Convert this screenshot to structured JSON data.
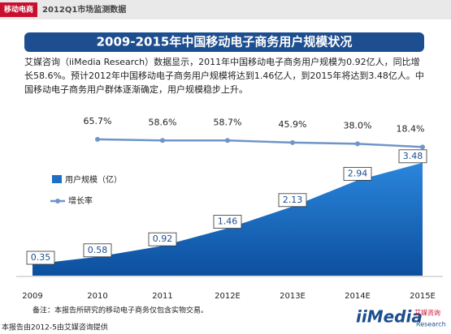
{
  "header": {
    "tag": "移动电商",
    "subtitle": "2012Q1市场监测数据"
  },
  "description": "艾媒咨询（iiMedia Research）数据显示，2011年中国移动电子商务用户规模为0.92亿人，同比增长58.6%。预计2012年中国移动电子商务用户规模将达到1.46亿人，到2015年将达到3.48亿人。中国移动电子商务用户群体逐渐确定，用户规模稳步上升。",
  "chart_data": {
    "type": "area-line",
    "title": "2009-2015年中国移动电子商务用户规模状况",
    "categories": [
      "2009",
      "2010",
      "2011",
      "2012E",
      "2013E",
      "2014E",
      "2015E"
    ],
    "series": [
      {
        "name": "用户规模（亿）",
        "color": "#1f6fc5",
        "values": [
          0.35,
          0.58,
          0.92,
          1.46,
          2.13,
          2.94,
          3.48
        ]
      },
      {
        "name": "增长率",
        "color": "#6f95c8",
        "values": [
          null,
          65.7,
          58.6,
          58.7,
          45.9,
          38.0,
          18.4
        ],
        "value_labels": [
          null,
          "65.7%",
          "58.6%",
          "58.7%",
          "45.9%",
          "38.0%",
          "18.4%"
        ]
      }
    ]
  },
  "note": "备注：本报告所研究的移动电子商务仅包含实物交易。",
  "source": "本报告由2012-5由艾媒咨询提供",
  "logo": {
    "brand": "iiMedia",
    "sub": "Research",
    "cn": "艾媒咨询"
  }
}
